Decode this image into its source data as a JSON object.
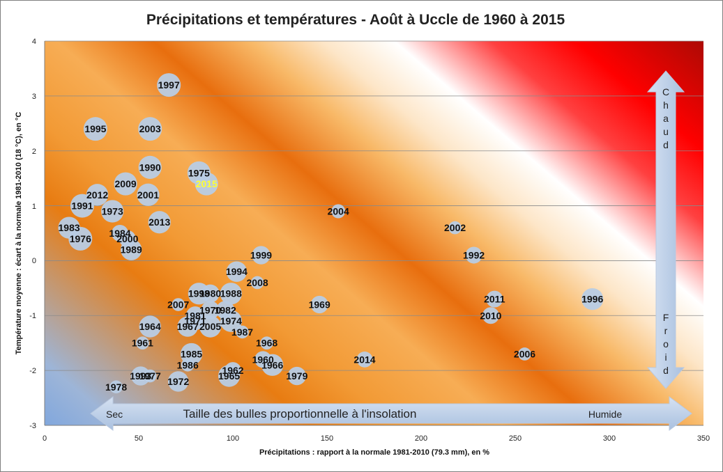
{
  "chart_data": {
    "type": "scatter",
    "title": "Précipitations et températures - Août à Uccle de 1960 à 2015",
    "xlabel": "Précipitations : rapport à la normale 1981-2010 (79.3 mm), en %",
    "ylabel": "Température moyenne : écart à la normale 1981-2010 (18 °C), en °C",
    "xlim": [
      0,
      350
    ],
    "ylim": [
      -3,
      4
    ],
    "xticks": [
      "0",
      "50",
      "100",
      "150",
      "200",
      "250",
      "300",
      "350"
    ],
    "yticks": [
      "4",
      "3",
      "2",
      "1",
      "0",
      "-1",
      "-2",
      "-3"
    ],
    "grid": "horizontal",
    "highlight_label": "2015",
    "annotations": {
      "size_note": "Taille des bulles proportionnelle à l'insolation",
      "dry": "Sec",
      "wet": "Humide",
      "hot": "Chaud",
      "cold": "Froid"
    },
    "colors": {
      "bubble": "#b8cce4",
      "hot": "#ff0000",
      "cold": "#8db3e2",
      "mid": "#f5a640",
      "highlight": "#ffff33"
    },
    "points": [
      {
        "label": "1997",
        "x": 66,
        "y": 3.2,
        "size": 1.0
      },
      {
        "label": "1995",
        "x": 27,
        "y": 2.4,
        "size": 1.0
      },
      {
        "label": "2003",
        "x": 56,
        "y": 2.4,
        "size": 1.0
      },
      {
        "label": "1990",
        "x": 56,
        "y": 1.7,
        "size": 0.95
      },
      {
        "label": "1975",
        "x": 82,
        "y": 1.6,
        "size": 0.95
      },
      {
        "label": "2015",
        "x": 86,
        "y": 1.4,
        "size": 0.95
      },
      {
        "label": "2009",
        "x": 43,
        "y": 1.4,
        "size": 0.95
      },
      {
        "label": "2012",
        "x": 28,
        "y": 1.2,
        "size": 0.85
      },
      {
        "label": "2001",
        "x": 55,
        "y": 1.2,
        "size": 0.9
      },
      {
        "label": "1991",
        "x": 20,
        "y": 1.0,
        "size": 1.0
      },
      {
        "label": "1973",
        "x": 36,
        "y": 0.9,
        "size": 0.9
      },
      {
        "label": "2013",
        "x": 61,
        "y": 0.7,
        "size": 0.9
      },
      {
        "label": "1983",
        "x": 13,
        "y": 0.6,
        "size": 0.85
      },
      {
        "label": "1984",
        "x": 40,
        "y": 0.5,
        "size": 0.5
      },
      {
        "label": "1976",
        "x": 19,
        "y": 0.4,
        "size": 1.0
      },
      {
        "label": "2000",
        "x": 44,
        "y": 0.4,
        "size": 0.5
      },
      {
        "label": "1989",
        "x": 46,
        "y": 0.2,
        "size": 0.8
      },
      {
        "label": "2004",
        "x": 156,
        "y": 0.9,
        "size": 0.35
      },
      {
        "label": "2002",
        "x": 218,
        "y": 0.6,
        "size": 0.3
      },
      {
        "label": "1992",
        "x": 228,
        "y": 0.1,
        "size": 0.5
      },
      {
        "label": "1999",
        "x": 115,
        "y": 0.1,
        "size": 0.6
      },
      {
        "label": "1994",
        "x": 102,
        "y": -0.2,
        "size": 0.75
      },
      {
        "label": "2008",
        "x": 113,
        "y": -0.4,
        "size": 0.3
      },
      {
        "label": "1998",
        "x": 82,
        "y": -0.6,
        "size": 0.85
      },
      {
        "label": "1980",
        "x": 88,
        "y": -0.6,
        "size": 0.6
      },
      {
        "label": "1988",
        "x": 99,
        "y": -0.6,
        "size": 0.85
      },
      {
        "label": "2007",
        "x": 71,
        "y": -0.8,
        "size": 0.3
      },
      {
        "label": "1969",
        "x": 146,
        "y": -0.8,
        "size": 0.55
      },
      {
        "label": "2011",
        "x": 239,
        "y": -0.7,
        "size": 0.5
      },
      {
        "label": "1996",
        "x": 291,
        "y": -0.7,
        "size": 0.85
      },
      {
        "label": "1970",
        "x": 88,
        "y": -0.9,
        "size": 0.6
      },
      {
        "label": "1982",
        "x": 96,
        "y": -0.9,
        "size": 0.6
      },
      {
        "label": "2010",
        "x": 237,
        "y": -1.0,
        "size": 0.5
      },
      {
        "label": "1981",
        "x": 80,
        "y": -1.0,
        "size": 0.6
      },
      {
        "label": "1971",
        "x": 80,
        "y": -1.1,
        "size": 0.6
      },
      {
        "label": "1974",
        "x": 99,
        "y": -1.1,
        "size": 0.85
      },
      {
        "label": "1964",
        "x": 56,
        "y": -1.2,
        "size": 0.85
      },
      {
        "label": "1967",
        "x": 76,
        "y": -1.2,
        "size": 0.75
      },
      {
        "label": "2005",
        "x": 88,
        "y": -1.2,
        "size": 0.85
      },
      {
        "label": "1987",
        "x": 105,
        "y": -1.3,
        "size": 0.3
      },
      {
        "label": "1961",
        "x": 52,
        "y": -1.5,
        "size": 0.3
      },
      {
        "label": "1968",
        "x": 118,
        "y": -1.5,
        "size": 0.3
      },
      {
        "label": "1985",
        "x": 78,
        "y": -1.7,
        "size": 0.85
      },
      {
        "label": "1960",
        "x": 116,
        "y": -1.8,
        "size": 0.5
      },
      {
        "label": "2014",
        "x": 170,
        "y": -1.8,
        "size": 0.45
      },
      {
        "label": "2006",
        "x": 255,
        "y": -1.7,
        "size": 0.3
      },
      {
        "label": "1986",
        "x": 76,
        "y": -1.9,
        "size": 0.3
      },
      {
        "label": "1966",
        "x": 121,
        "y": -1.9,
        "size": 0.85
      },
      {
        "label": "1962",
        "x": 100,
        "y": -2.0,
        "size": 0.5
      },
      {
        "label": "1965",
        "x": 98,
        "y": -2.1,
        "size": 0.85
      },
      {
        "label": "1993",
        "x": 51,
        "y": -2.1,
        "size": 0.65
      },
      {
        "label": "1977",
        "x": 56,
        "y": -2.1,
        "size": 0.3
      },
      {
        "label": "1979",
        "x": 134,
        "y": -2.1,
        "size": 0.6
      },
      {
        "label": "1972",
        "x": 71,
        "y": -2.2,
        "size": 0.75
      },
      {
        "label": "1978",
        "x": 38,
        "y": -2.3,
        "size": 0.3
      }
    ]
  }
}
